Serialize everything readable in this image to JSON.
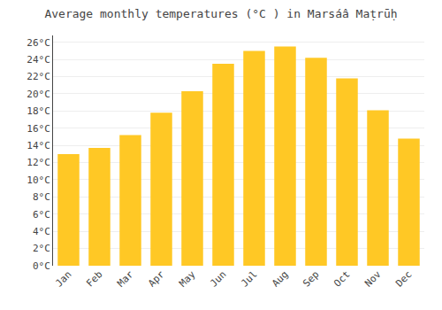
{
  "chart_data": {
    "type": "bar",
    "title": "Average monthly temperatures (°C ) in Marsáâ Maṭrūḥ",
    "categories": [
      "Jan",
      "Feb",
      "Mar",
      "Apr",
      "May",
      "Jun",
      "Jul",
      "Aug",
      "Sep",
      "Oct",
      "Nov",
      "Dec"
    ],
    "values": [
      13.0,
      13.7,
      15.2,
      17.8,
      20.3,
      23.5,
      25.0,
      25.5,
      24.2,
      21.8,
      18.1,
      14.8
    ],
    "color": "#FFC825",
    "ylim": [
      0,
      26.8
    ],
    "yticks": [
      {
        "value": 0,
        "label": "0°C"
      },
      {
        "value": 2,
        "label": "2°C"
      },
      {
        "value": 4,
        "label": "4°C"
      },
      {
        "value": 6,
        "label": "6°C"
      },
      {
        "value": 8,
        "label": "8°C"
      },
      {
        "value": 10,
        "label": "10°C"
      },
      {
        "value": 12,
        "label": "12°C"
      },
      {
        "value": 14,
        "label": "14°C"
      },
      {
        "value": 16,
        "label": "16°C"
      },
      {
        "value": 18,
        "label": "18°C"
      },
      {
        "value": 20,
        "label": "20°C"
      },
      {
        "value": 22,
        "label": "22°C"
      },
      {
        "value": 24,
        "label": "24°C"
      },
      {
        "value": 26,
        "label": "26°C"
      }
    ],
    "grid": true
  }
}
